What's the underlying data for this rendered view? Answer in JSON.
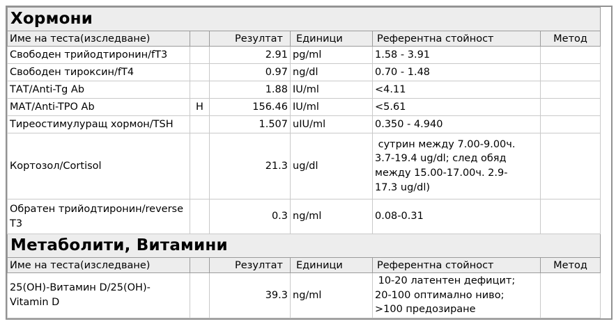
{
  "report": {
    "columns": {
      "name": "Име на теста(изследване)",
      "flag": "",
      "result": "Резултат",
      "units": "Единици",
      "reference": "Референтна стойност",
      "method": "Метод"
    },
    "colors": {
      "band_background": "#ededed",
      "header_background": "#ededed",
      "outer_border": "#929292",
      "cell_border": "#c9c9c9",
      "text": "#000000"
    },
    "sections": [
      {
        "title": "Хормони",
        "rows": [
          {
            "name": "Свободен трийодтиронин/fT3",
            "flag": "",
            "result": "2.91",
            "units": "pg/ml",
            "reference": "1.58 - 3.91",
            "method": ""
          },
          {
            "name": "Свободен тироксин/fT4",
            "flag": "",
            "result": "0.97",
            "units": "ng/dl",
            "reference": "0.70 - 1.48",
            "method": ""
          },
          {
            "name": "ТАТ/Anti-Tg Ab",
            "flag": "",
            "result": "1.88",
            "units": "IU/ml",
            "reference": "<4.11",
            "method": ""
          },
          {
            "name": "МАТ/Anti-TPO Ab",
            "flag": "H",
            "result": "156.46",
            "units": "IU/ml",
            "reference": "<5.61",
            "method": ""
          },
          {
            "name": "Тиреостимулуращ хормон/TSH",
            "flag": "",
            "result": "1.507",
            "units": "uIU/ml",
            "reference": "0.350 - 4.940",
            "method": ""
          },
          {
            "name": "Кортозол/Cortisol",
            "flag": "",
            "result": "21.3",
            "units": "ug/dl",
            "reference": " сутрин между 7.00-9.00ч.\n3.7-19.4 ug/dl; след обяд\nмежду 15.00-17.00ч. 2.9-\n17.3 ug/dl)",
            "method": ""
          },
          {
            "name": "Обратен трийодтиронин/reverse\nТ3",
            "flag": "",
            "result": "0.3",
            "units": "ng/ml",
            "reference": "0.08-0.31",
            "method": ""
          }
        ]
      },
      {
        "title": "Метаболити, Витамини",
        "rows": [
          {
            "name": "25(OH)-Витамин D/25(OH)-\nVitamin D",
            "flag": "",
            "result": "39.3",
            "units": "ng/ml",
            "reference": " 10-20 латентен дефицит;\n20-100 оптимално ниво;\n>100 предозиране",
            "method": ""
          }
        ]
      }
    ]
  }
}
